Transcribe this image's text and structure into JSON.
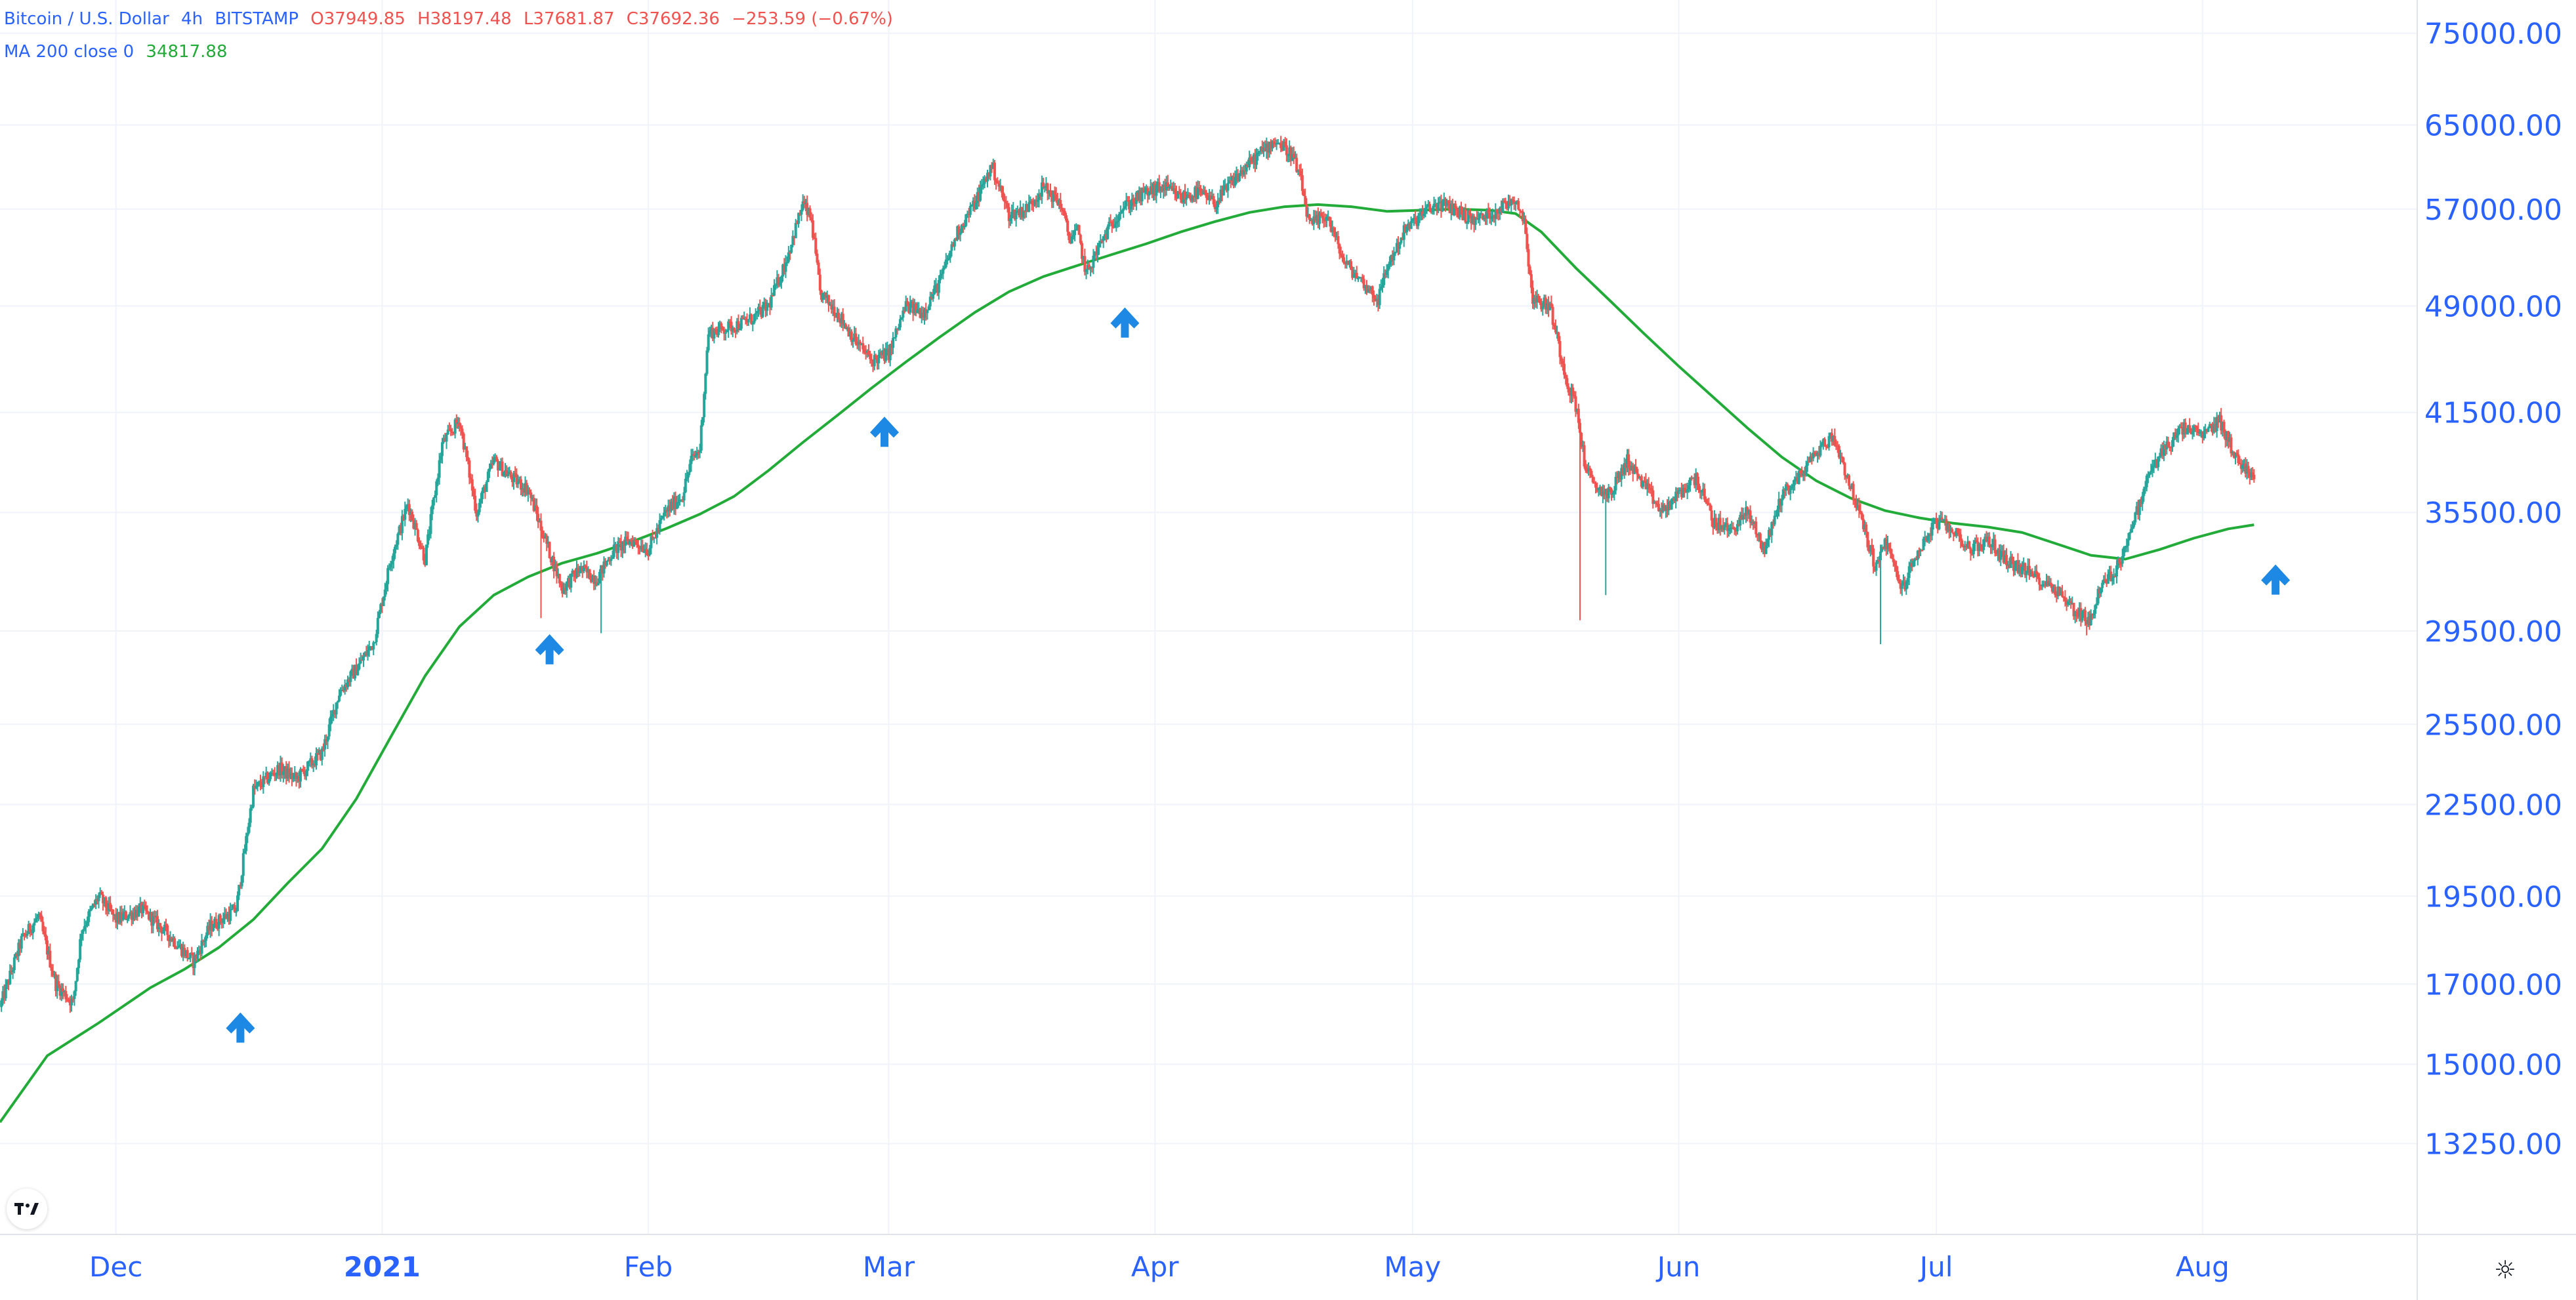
{
  "legend": {
    "symbol": "Bitcoin / U.S. Dollar",
    "interval": "4h",
    "exchange": "BITSTAMP",
    "open": "O37949.85",
    "high": "H38197.48",
    "low": "L37681.87",
    "close": "C37692.36",
    "change": "−253.59 (−0.67%)",
    "ma_label": "MA 200 close 0",
    "ma_value": "34817.88"
  },
  "colors": {
    "up": "#26a69a",
    "down": "#ef5350",
    "ma": "#22ab39",
    "arrow": "#1e88e5",
    "axis_text": "#2962ff",
    "grid": "#f0f3fa"
  },
  "chart_data": {
    "type": "candlestick",
    "title": "Bitcoin / U.S. Dollar · 4h · BITSTAMP",
    "y_scale": "log",
    "ylim": [
      11500,
      79000
    ],
    "y_ticks": [
      "75000.00",
      "65000.00",
      "57000.00",
      "49000.00",
      "41500.00",
      "35500.00",
      "29500.00",
      "25500.00",
      "22500.00",
      "19500.00",
      "17000.00",
      "15000.00",
      "13250.00"
    ],
    "x_ticks": [
      {
        "label": "Dec",
        "day": 0,
        "bold": false
      },
      {
        "label": "2021",
        "day": 31,
        "bold": true
      },
      {
        "label": "Feb",
        "day": 62,
        "bold": false
      },
      {
        "label": "Mar",
        "day": 90,
        "bold": false
      },
      {
        "label": "Apr",
        "day": 121,
        "bold": false
      },
      {
        "label": "May",
        "day": 151,
        "bold": false
      },
      {
        "label": "Jun",
        "day": 182,
        "bold": false
      },
      {
        "label": "Jul",
        "day": 212,
        "bold": false
      },
      {
        "label": "Aug",
        "day": 243,
        "bold": false
      }
    ],
    "x_domain_days": [
      -13.5,
      268
    ],
    "price_path": [
      [
        -13.5,
        16400
      ],
      [
        -11,
        18200
      ],
      [
        -9,
        18900
      ],
      [
        -7,
        17000
      ],
      [
        -5,
        16500
      ],
      [
        -4,
        18500
      ],
      [
        -2,
        19500
      ],
      [
        0,
        18800
      ],
      [
        3,
        19100
      ],
      [
        6,
        18400
      ],
      [
        9,
        17600
      ],
      [
        11,
        18600
      ],
      [
        14,
        19100
      ],
      [
        16,
        23000
      ],
      [
        19,
        23800
      ],
      [
        21,
        23400
      ],
      [
        24,
        24400
      ],
      [
        26,
        26800
      ],
      [
        28,
        27800
      ],
      [
        30,
        29000
      ],
      [
        32,
        33000
      ],
      [
        34,
        36000
      ],
      [
        36,
        33000
      ],
      [
        38,
        39500
      ],
      [
        40,
        41000
      ],
      [
        42,
        35500
      ],
      [
        44,
        38500
      ],
      [
        46,
        37500
      ],
      [
        48,
        36800
      ],
      [
        50,
        34000
      ],
      [
        52,
        31500
      ],
      [
        54,
        32500
      ],
      [
        56,
        32000
      ],
      [
        58,
        33500
      ],
      [
        60,
        34000
      ],
      [
        62,
        33500
      ],
      [
        64,
        35500
      ],
      [
        66,
        36500
      ],
      [
        67,
        38500
      ],
      [
        68,
        39200
      ],
      [
        69,
        47000
      ],
      [
        72,
        47500
      ],
      [
        74,
        48000
      ],
      [
        76,
        49000
      ],
      [
        78,
        52500
      ],
      [
        80,
        57500
      ],
      [
        81,
        56000
      ],
      [
        82,
        50000
      ],
      [
        84,
        48500
      ],
      [
        86,
        46500
      ],
      [
        88,
        45000
      ],
      [
        90,
        45500
      ],
      [
        92,
        49000
      ],
      [
        94,
        48500
      ],
      [
        96,
        51000
      ],
      [
        98,
        55000
      ],
      [
        100,
        57500
      ],
      [
        102,
        61000
      ],
      [
        104,
        56500
      ],
      [
        106,
        57000
      ],
      [
        108,
        59000
      ],
      [
        110,
        57500
      ],
      [
        111,
        54500
      ],
      [
        112,
        55000
      ],
      [
        113,
        51500
      ],
      [
        115,
        54500
      ],
      [
        117,
        57000
      ],
      [
        120,
        58500
      ],
      [
        122,
        59000
      ],
      [
        124,
        58000
      ],
      [
        126,
        58500
      ],
      [
        128,
        57500
      ],
      [
        130,
        59500
      ],
      [
        133,
        62000
      ],
      [
        135,
        63500
      ],
      [
        137,
        62000
      ],
      [
        138,
        59500
      ],
      [
        139,
        55500
      ],
      [
        141,
        56500
      ],
      [
        143,
        52500
      ],
      [
        145,
        51000
      ],
      [
        147,
        49500
      ],
      [
        148,
        52000
      ],
      [
        150,
        55000
      ],
      [
        152,
        56500
      ],
      [
        154,
        57500
      ],
      [
        156,
        57000
      ],
      [
        158,
        56000
      ],
      [
        160,
        56500
      ],
      [
        162,
        57500
      ],
      [
        163,
        58000
      ],
      [
        164,
        56000
      ],
      [
        165,
        49500
      ],
      [
        167,
        49000
      ],
      [
        169,
        43500
      ],
      [
        170,
        42000
      ],
      [
        171,
        38500
      ],
      [
        172,
        37000
      ],
      [
        174,
        36500
      ],
      [
        176,
        38500
      ],
      [
        178,
        37000
      ],
      [
        180,
        35500
      ],
      [
        182,
        36500
      ],
      [
        184,
        37500
      ],
      [
        186,
        35000
      ],
      [
        188,
        34500
      ],
      [
        190,
        35500
      ],
      [
        192,
        33500
      ],
      [
        194,
        36500
      ],
      [
        196,
        37500
      ],
      [
        198,
        39000
      ],
      [
        200,
        40000
      ],
      [
        201,
        38500
      ],
      [
        203,
        35500
      ],
      [
        205,
        32500
      ],
      [
        206,
        34000
      ],
      [
        208,
        31500
      ],
      [
        210,
        33500
      ],
      [
        212,
        35000
      ],
      [
        214,
        34500
      ],
      [
        216,
        33500
      ],
      [
        218,
        34000
      ],
      [
        220,
        33000
      ],
      [
        222,
        32500
      ],
      [
        224,
        32000
      ],
      [
        226,
        31500
      ],
      [
        228,
        30500
      ],
      [
        230,
        30000
      ],
      [
        231,
        31500
      ],
      [
        233,
        32500
      ],
      [
        235,
        35000
      ],
      [
        237,
        38000
      ],
      [
        239,
        39500
      ],
      [
        241,
        40500
      ],
      [
        243,
        40000
      ],
      [
        245,
        41000
      ],
      [
        247,
        38500
      ],
      [
        249,
        37692
      ]
    ],
    "wicks": [
      {
        "day": 170.5,
        "low": 30000
      },
      {
        "day": 173.5,
        "low": 31200
      },
      {
        "day": 205.5,
        "low": 28900
      },
      {
        "day": 229.5,
        "low": 29300
      },
      {
        "day": 56.5,
        "low": 29400
      },
      {
        "day": 49.5,
        "low": 30100
      }
    ],
    "ma": {
      "name": "MA 200 close 0",
      "points": [
        [
          -13.5,
          13700
        ],
        [
          -8,
          15200
        ],
        [
          -2,
          16000
        ],
        [
          4,
          16900
        ],
        [
          8,
          17400
        ],
        [
          12,
          18000
        ],
        [
          16,
          18800
        ],
        [
          20,
          19900
        ],
        [
          24,
          21000
        ],
        [
          28,
          22700
        ],
        [
          32,
          25000
        ],
        [
          36,
          27500
        ],
        [
          40,
          29700
        ],
        [
          44,
          31200
        ],
        [
          48,
          32100
        ],
        [
          52,
          32800
        ],
        [
          56,
          33300
        ],
        [
          60,
          33900
        ],
        [
          64,
          34600
        ],
        [
          68,
          35400
        ],
        [
          72,
          36400
        ],
        [
          76,
          37900
        ],
        [
          80,
          39600
        ],
        [
          84,
          41300
        ],
        [
          88,
          43100
        ],
        [
          92,
          44900
        ],
        [
          96,
          46700
        ],
        [
          100,
          48500
        ],
        [
          104,
          50100
        ],
        [
          108,
          51300
        ],
        [
          112,
          52200
        ],
        [
          116,
          53100
        ],
        [
          120,
          54000
        ],
        [
          124,
          55000
        ],
        [
          128,
          55900
        ],
        [
          132,
          56700
        ],
        [
          136,
          57200
        ],
        [
          140,
          57400
        ],
        [
          144,
          57200
        ],
        [
          148,
          56800
        ],
        [
          152,
          56900
        ],
        [
          156,
          57000
        ],
        [
          160,
          56900
        ],
        [
          163,
          56600
        ],
        [
          166,
          55000
        ],
        [
          170,
          52000
        ],
        [
          174,
          49400
        ],
        [
          178,
          46900
        ],
        [
          182,
          44600
        ],
        [
          186,
          42500
        ],
        [
          190,
          40500
        ],
        [
          194,
          38700
        ],
        [
          198,
          37300
        ],
        [
          202,
          36300
        ],
        [
          206,
          35600
        ],
        [
          210,
          35200
        ],
        [
          214,
          34900
        ],
        [
          218,
          34700
        ],
        [
          222,
          34400
        ],
        [
          226,
          33800
        ],
        [
          230,
          33200
        ],
        [
          234,
          33000
        ],
        [
          238,
          33500
        ],
        [
          242,
          34100
        ],
        [
          246,
          34600
        ],
        [
          249,
          34818
        ]
      ]
    },
    "markers": [
      {
        "type": "up-arrow",
        "day": 14.5,
        "price": 15900
      },
      {
        "type": "up-arrow",
        "day": 50.5,
        "price": 28700
      },
      {
        "type": "up-arrow",
        "day": 89.5,
        "price": 40300
      },
      {
        "type": "up-arrow",
        "day": 117.5,
        "price": 47800
      },
      {
        "type": "up-arrow",
        "day": 251.5,
        "price": 32000
      }
    ]
  }
}
